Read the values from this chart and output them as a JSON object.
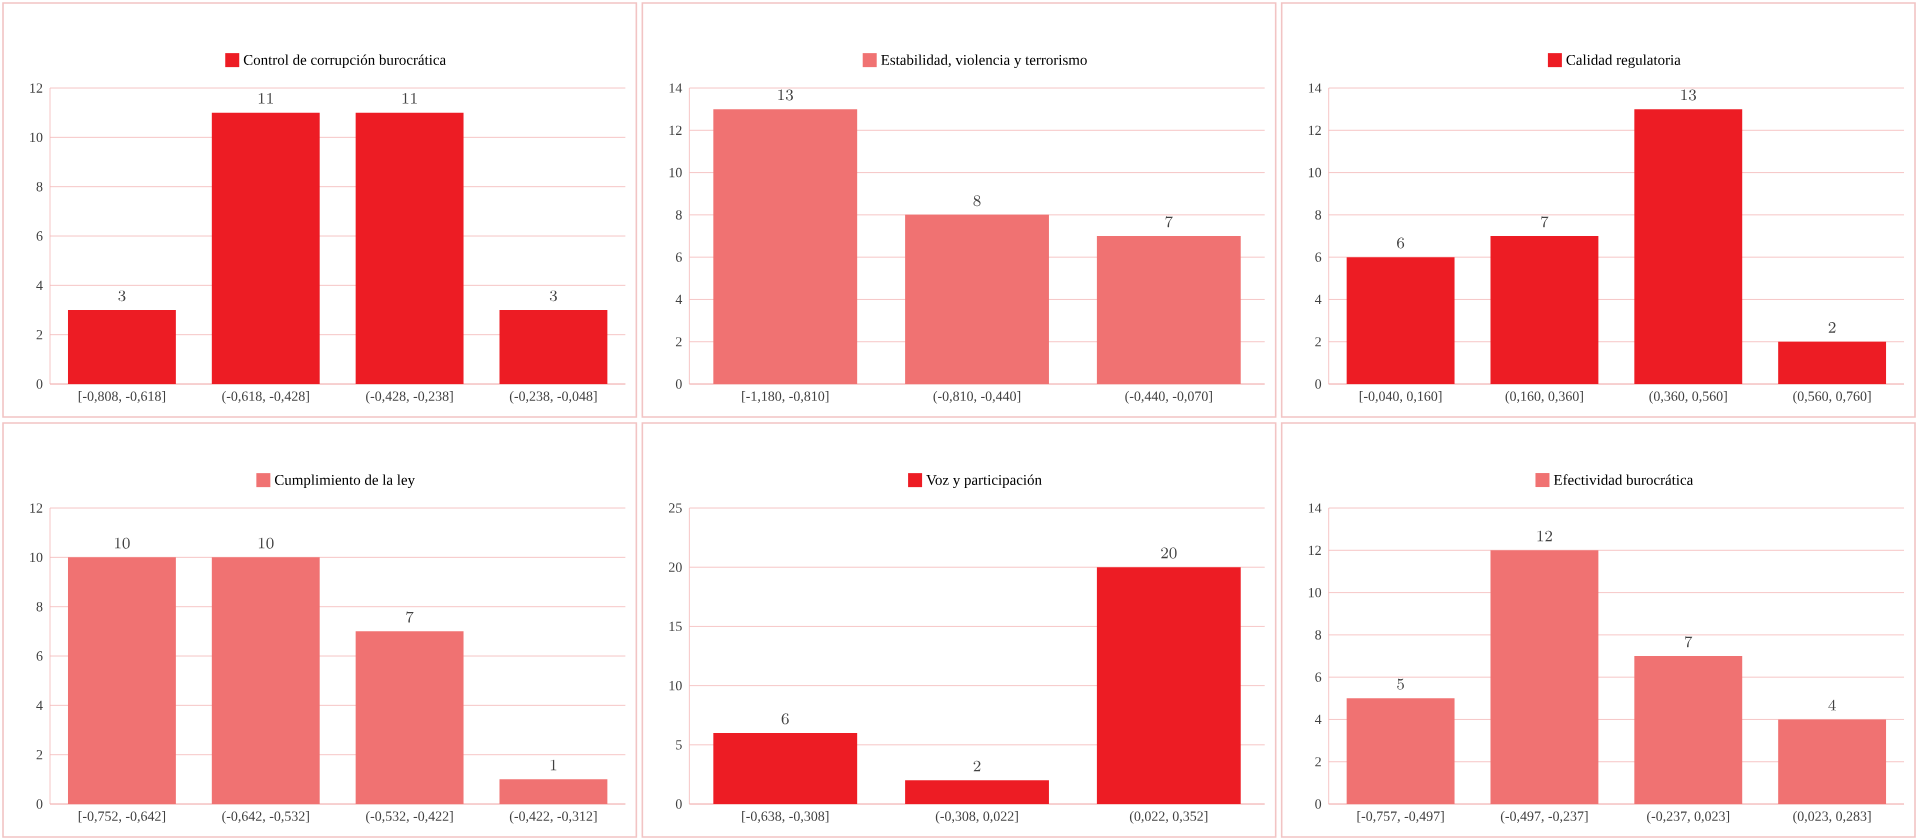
{
  "chart_data": [
    {
      "type": "bar",
      "categories": [
        "[-0,808, -0,618]",
        "(-0,618, -0,428]",
        "(-0,428, -0,238]",
        "(-0,238, -0,048]"
      ],
      "series": [
        {
          "name": "Control de corrupción burocrática",
          "color": "#ed1c24",
          "values": [
            3,
            11,
            11,
            3
          ]
        }
      ],
      "ylim": [
        0,
        12
      ],
      "yticks": [
        0,
        2,
        4,
        6,
        8,
        10,
        12
      ],
      "grid": "y",
      "legend": "top",
      "data_labels": true
    },
    {
      "type": "bar",
      "categories": [
        "[-1,180, -0,810]",
        "(-0,810, -0,440]",
        "(-0,440, -0,070]"
      ],
      "series": [
        {
          "name": "Estabilidad, violencia y terrorismo",
          "color": "#f07272",
          "values": [
            13,
            8,
            7
          ]
        }
      ],
      "ylim": [
        0,
        14
      ],
      "yticks": [
        0,
        2,
        4,
        6,
        8,
        10,
        12,
        14
      ],
      "grid": "y",
      "legend": "top",
      "data_labels": true
    },
    {
      "type": "bar",
      "categories": [
        "[-0,040, 0,160]",
        "(0,160, 0,360]",
        "(0,360, 0,560]",
        "(0,560, 0,760]"
      ],
      "series": [
        {
          "name": "Calidad regulatoria",
          "color": "#ed1c24",
          "values": [
            6,
            7,
            13,
            2
          ]
        }
      ],
      "ylim": [
        0,
        14
      ],
      "yticks": [
        0,
        2,
        4,
        6,
        8,
        10,
        12,
        14
      ],
      "grid": "y",
      "legend": "top",
      "data_labels": true
    },
    {
      "type": "bar",
      "categories": [
        "[-0,752, -0,642]",
        "(-0,642, -0,532]",
        "(-0,532, -0,422]",
        "(-0,422, -0,312]"
      ],
      "series": [
        {
          "name": "Cumplimiento de la ley",
          "color": "#f07272",
          "values": [
            10,
            10,
            7,
            1
          ]
        }
      ],
      "ylim": [
        0,
        12
      ],
      "yticks": [
        0,
        2,
        4,
        6,
        8,
        10,
        12
      ],
      "grid": "y",
      "legend": "top",
      "data_labels": true
    },
    {
      "type": "bar",
      "categories": [
        "[-0,638, -0,308]",
        "(-0,308, 0,022]",
        "(0,022, 0,352]"
      ],
      "series": [
        {
          "name": "Voz y participación",
          "color": "#ed1c24",
          "values": [
            6,
            2,
            20
          ]
        }
      ],
      "ylim": [
        0,
        25
      ],
      "yticks": [
        0,
        5,
        10,
        15,
        20,
        25
      ],
      "grid": "y",
      "legend": "top",
      "data_labels": true
    },
    {
      "type": "bar",
      "categories": [
        "[-0,757, -0,497]",
        "(-0,497, -0,237]",
        "(-0,237, 0,023]",
        "(0,023, 0,283]"
      ],
      "series": [
        {
          "name": "Efectividad burocrática",
          "color": "#f07272",
          "values": [
            5,
            12,
            7,
            4
          ]
        }
      ],
      "ylim": [
        0,
        14
      ],
      "yticks": [
        0,
        2,
        4,
        6,
        8,
        10,
        12,
        14
      ],
      "grid": "y",
      "legend": "top",
      "data_labels": true
    }
  ]
}
